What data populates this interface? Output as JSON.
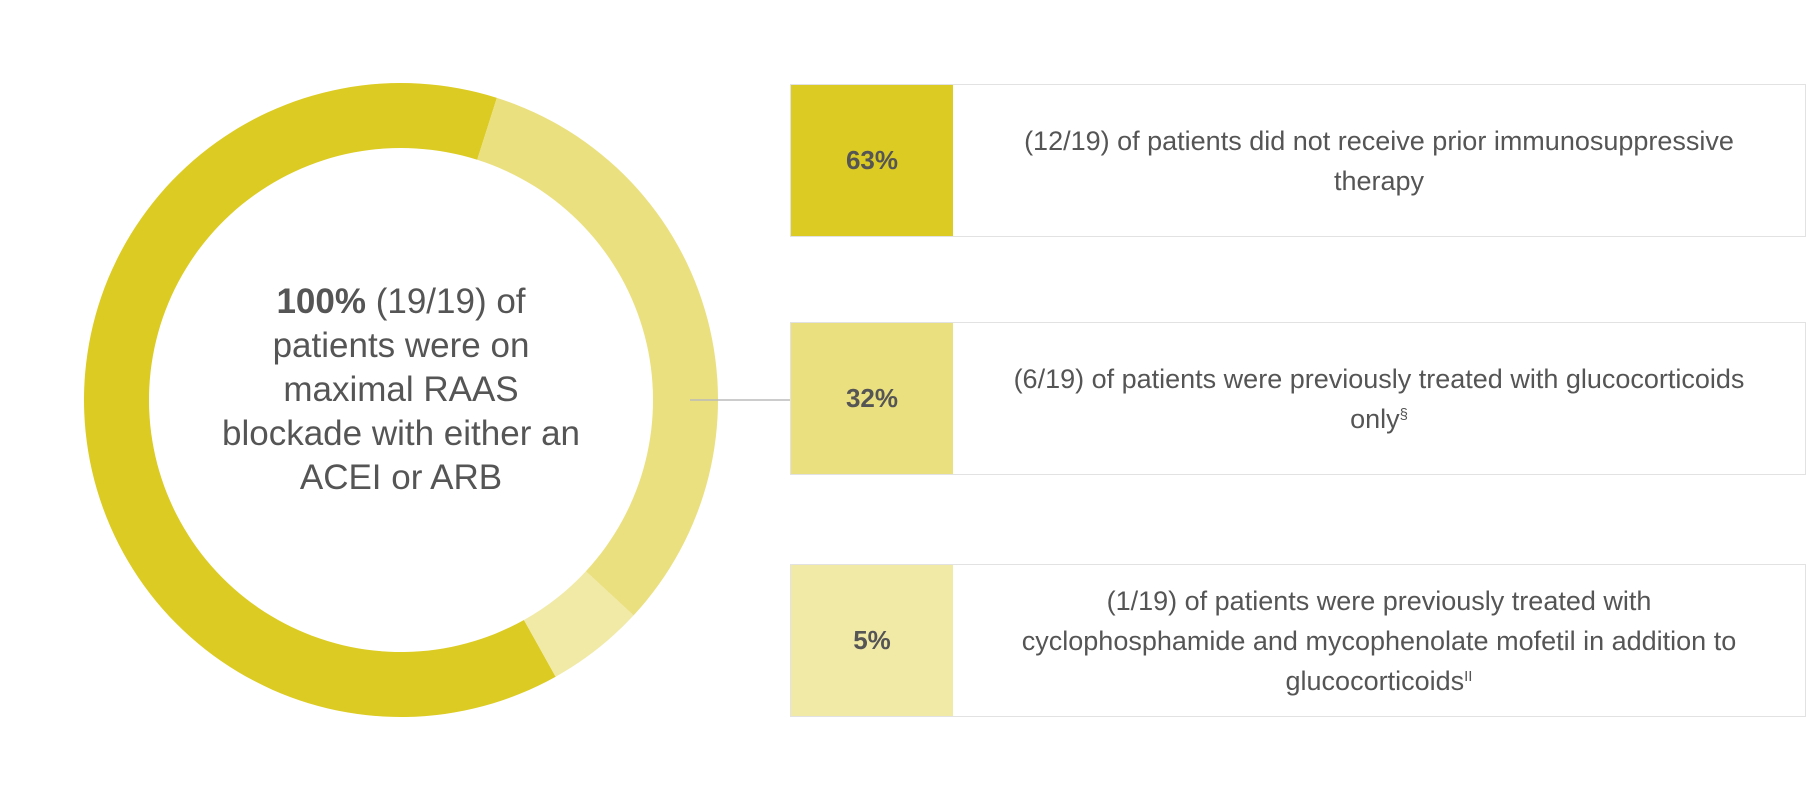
{
  "chart_data": {
    "type": "donut",
    "total": 100,
    "total_label": "100%",
    "center_text": "(19/19) of patients were on maximal RAAS blockade with either an ACEI or ARB",
    "categories": [
      "(12/19) of patients did not receive prior immunosuppressive therapy",
      "(6/19) of patients were previously treated with glucocorticoids only",
      "(1/19) of patients were previously treated with cyclophosphamide and mycophenolate mofetil in addition to glucocorticoids"
    ],
    "footnotes": [
      null,
      "§",
      "II"
    ],
    "values": [
      63,
      32,
      5
    ],
    "value_labels": [
      "63%",
      "32%",
      "5%"
    ],
    "colors": [
      "#dccb23",
      "#ebe07f",
      "#f1eaa6"
    ]
  }
}
